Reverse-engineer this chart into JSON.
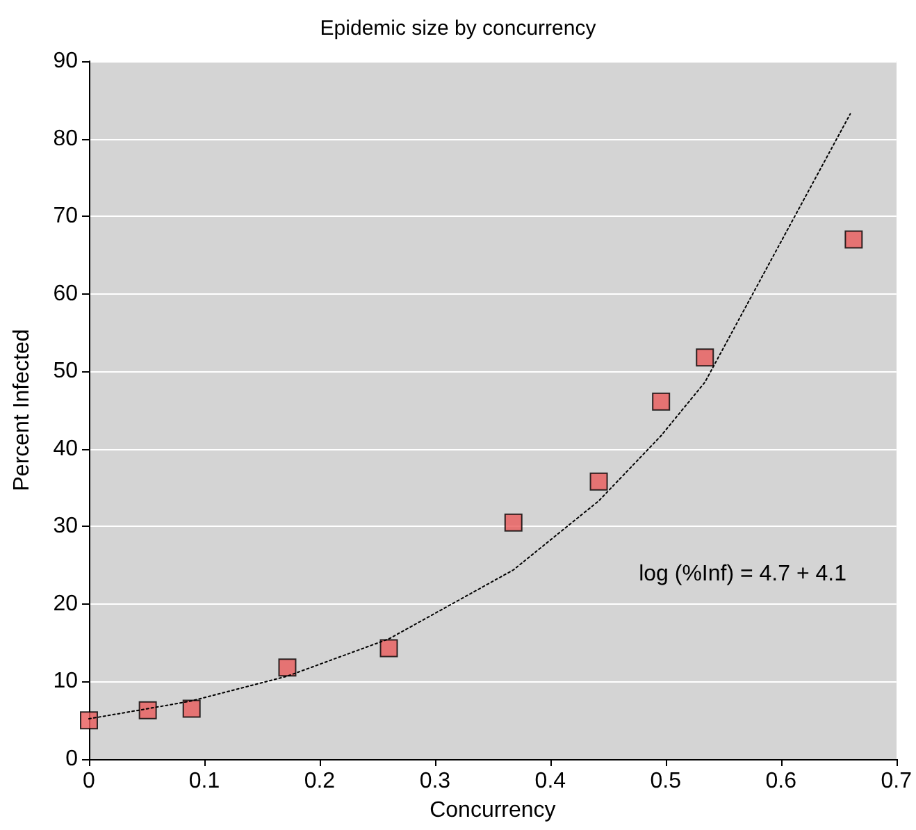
{
  "chart_data": {
    "type": "scatter",
    "title": "Epidemic size by concurrency",
    "xlabel": "Concurrency",
    "ylabel": "Percent Infected",
    "xlim": [
      0,
      0.7
    ],
    "xticks": [
      0,
      0.1,
      0.2,
      0.3,
      0.4,
      0.5,
      0.6,
      0.7
    ],
    "ylim": [
      0,
      90
    ],
    "yticks": [
      0,
      10,
      20,
      30,
      40,
      50,
      60,
      70,
      80,
      90
    ],
    "grid": "y",
    "series": [
      {
        "color": "#e85a5a",
        "marker": "square",
        "x": [
          0,
          0.051,
          0.089,
          0.172,
          0.26,
          0.368,
          0.442,
          0.496,
          0.534,
          0.663
        ],
        "values": [
          5.0,
          6.3,
          6.5,
          11.8,
          14.3,
          30.5,
          35.8,
          46.1,
          51.8,
          67.0
        ]
      },
      {
        "type": "line",
        "color": "#000000",
        "marker": "none",
        "line_style": "dotted",
        "x": [
          0,
          0.051,
          0.089,
          0.172,
          0.26,
          0.368,
          0.442,
          0.496,
          0.534,
          0.66
        ],
        "values": [
          5.2,
          6.5,
          7.5,
          10.7,
          15.5,
          24.4,
          33.3,
          41.7,
          48.6,
          83.2
        ]
      }
    ],
    "annotations": [
      "log (%Inf) = 4.7 + 4.1"
    ]
  }
}
